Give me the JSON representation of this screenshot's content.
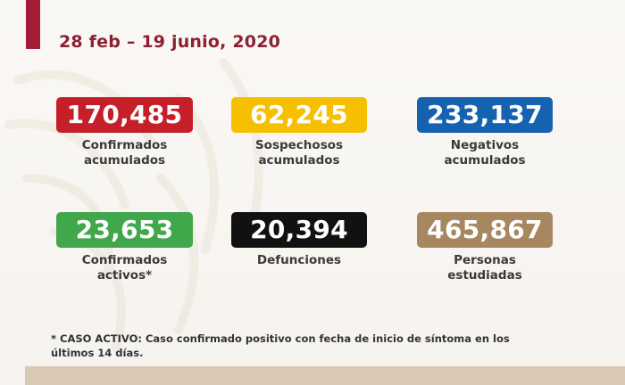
{
  "colors": {
    "header_accent": "#a11e36",
    "title_text": "#8c2133",
    "red": "#c5202a",
    "yellow": "#f6c000",
    "blue": "#1562b0",
    "green": "#41a74b",
    "black": "#111111",
    "gold": "#a6875f",
    "bottom_strip": "#d9c8b3"
  },
  "header": {
    "date_range": "28 feb – 19 junio, 2020"
  },
  "stats": [
    {
      "value": "170,485",
      "label_lines": [
        "Confirmados",
        "acumulados"
      ],
      "color": "red"
    },
    {
      "value": "62,245",
      "label_lines": [
        "Sospechosos",
        "acumulados"
      ],
      "color": "yellow"
    },
    {
      "value": "233,137",
      "label_lines": [
        "Negativos",
        "acumulados"
      ],
      "color": "blue"
    },
    {
      "value": "23,653",
      "label_lines": [
        "Confirmados",
        "activos*"
      ],
      "color": "green"
    },
    {
      "value": "20,394",
      "label_lines": [
        "Defunciones"
      ],
      "color": "black"
    },
    {
      "value": "465,867",
      "label_lines": [
        "Personas",
        "estudiadas"
      ],
      "color": "gold"
    }
  ],
  "footnote": {
    "lines": [
      "* CASO ACTIVO: Caso confirmado positivo con fecha de inicio de síntoma en los",
      "últimos 14 días."
    ]
  }
}
